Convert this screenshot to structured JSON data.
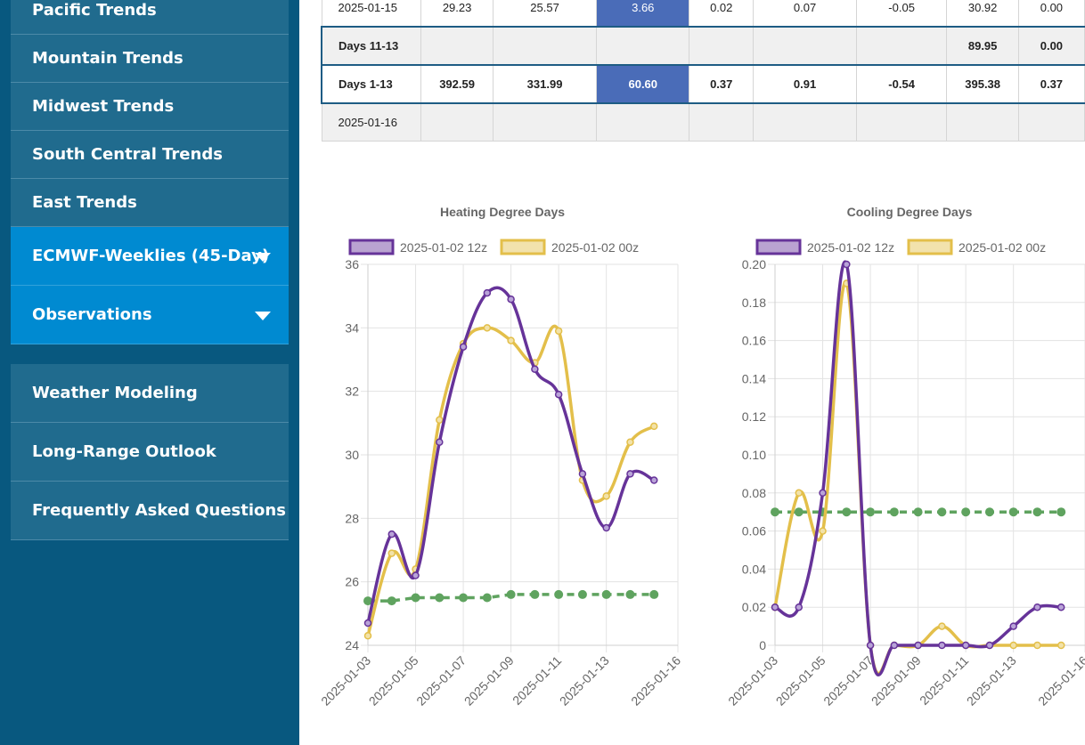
{
  "sidebar": {
    "items": [
      {
        "label": "Pacific Trends"
      },
      {
        "label": "Mountain Trends"
      },
      {
        "label": "Midwest Trends"
      },
      {
        "label": "South Central Trends"
      },
      {
        "label": "East Trends"
      },
      {
        "label": "ECMWF-Weeklies (45-Day)"
      },
      {
        "label": "Observations"
      }
    ],
    "items2": [
      {
        "label": "Weather Modeling"
      },
      {
        "label": "Long-Range Outlook"
      },
      {
        "label": "Frequently Asked Questions"
      }
    ]
  },
  "table": {
    "rows": [
      {
        "cells": [
          "2025-01-15",
          "29.23",
          "25.57",
          "3.66",
          "0.02",
          "0.07",
          "-0.05",
          "30.92",
          "0.00"
        ]
      },
      {
        "cells": [
          "Days 11-13",
          "",
          "",
          "",
          "",
          "",
          "",
          "89.95",
          "0.00"
        ]
      },
      {
        "cells": [
          "Days 1-13",
          "392.59",
          "331.99",
          "60.60",
          "0.37",
          "0.91",
          "-0.54",
          "395.38",
          "0.37"
        ]
      },
      {
        "cells": [
          "2025-01-16",
          "",
          "",
          "",
          "",
          "",
          "",
          "",
          ""
        ]
      }
    ]
  },
  "colors": {
    "series_12z": "#663399",
    "series_00z": "#e3bf4a",
    "normal": "#5fa35f",
    "highlight": "#4a6cb8"
  },
  "chart_data": [
    {
      "type": "line",
      "title": "Heating Degree Days",
      "x": [
        "2025-01-03",
        "2025-01-04",
        "2025-01-05",
        "2025-01-06",
        "2025-01-07",
        "2025-01-08",
        "2025-01-09",
        "2025-01-10",
        "2025-01-11",
        "2025-01-12",
        "2025-01-13",
        "2025-01-14",
        "2025-01-15"
      ],
      "x_ticks": [
        "2025-01-03",
        "2025-01-05",
        "2025-01-07",
        "2025-01-09",
        "2025-01-11",
        "2025-01-13",
        "2025-01-16"
      ],
      "ylim": [
        24,
        36
      ],
      "y_ticks": [
        "24",
        "26",
        "28",
        "30",
        "32",
        "34",
        "36"
      ],
      "grid": true,
      "legend": "top",
      "series": [
        {
          "name": "2025-01-02 12z",
          "values": [
            24.7,
            27.5,
            26.2,
            30.4,
            33.4,
            35.1,
            34.9,
            32.7,
            31.9,
            29.4,
            27.7,
            29.4,
            29.2
          ]
        },
        {
          "name": "2025-01-02 00z",
          "values": [
            24.3,
            26.9,
            26.4,
            31.1,
            33.5,
            34.0,
            33.6,
            32.9,
            33.9,
            29.2,
            28.7,
            30.4,
            30.9
          ]
        },
        {
          "values": [
            25.4,
            25.4,
            25.5,
            25.5,
            25.5,
            25.5,
            25.6,
            25.6,
            25.6,
            25.6,
            25.6,
            25.6,
            25.6
          ]
        }
      ]
    },
    {
      "type": "line",
      "title": "Cooling Degree Days",
      "x": [
        "2025-01-03",
        "2025-01-04",
        "2025-01-05",
        "2025-01-06",
        "2025-01-07",
        "2025-01-08",
        "2025-01-09",
        "2025-01-10",
        "2025-01-11",
        "2025-01-12",
        "2025-01-13",
        "2025-01-14",
        "2025-01-15"
      ],
      "x_ticks": [
        "2025-01-03",
        "2025-01-05",
        "2025-01-07",
        "2025-01-09",
        "2025-01-11",
        "2025-01-13",
        "2025-01-16"
      ],
      "ylim": [
        0,
        0.2
      ],
      "y_ticks": [
        "0",
        "0.02",
        "0.04",
        "0.06",
        "0.08",
        "0.10",
        "0.12",
        "0.14",
        "0.16",
        "0.18",
        "0.20"
      ],
      "grid": true,
      "legend": "top",
      "series": [
        {
          "name": "2025-01-02 12z",
          "values": [
            0.02,
            0.02,
            0.08,
            0.2,
            0,
            0,
            0,
            0,
            0,
            0,
            0.01,
            0.02,
            0.02
          ]
        },
        {
          "name": "2025-01-02 00z",
          "values": [
            0.02,
            0.08,
            0.06,
            0.19,
            0,
            0,
            0,
            0.01,
            0,
            0,
            0,
            0,
            0
          ]
        },
        {
          "values": [
            0.07,
            0.07,
            0.07,
            0.07,
            0.07,
            0.07,
            0.07,
            0.07,
            0.07,
            0.07,
            0.07,
            0.07,
            0.07
          ]
        }
      ]
    }
  ]
}
